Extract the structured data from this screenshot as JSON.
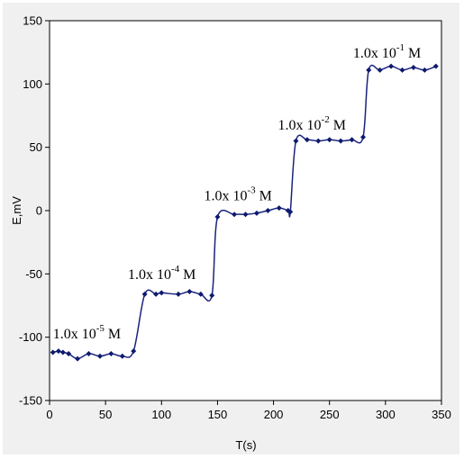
{
  "chart_data": {
    "type": "line",
    "title": "",
    "xlabel": "T(s)",
    "ylabel": "E,mV",
    "xlim": [
      0,
      350
    ],
    "ylim": [
      -150,
      150
    ],
    "x_ticks": [
      0,
      50,
      100,
      150,
      200,
      250,
      300,
      350
    ],
    "y_ticks": [
      -150,
      -100,
      -50,
      0,
      50,
      100,
      150
    ],
    "grid": false,
    "line_color": "#1a237e",
    "marker_color": "#0d1a6e",
    "series": [
      {
        "points": [
          [
            3,
            -112
          ],
          [
            8,
            -111
          ],
          [
            12,
            -112
          ],
          [
            17,
            -113
          ],
          [
            25,
            -117
          ],
          [
            35,
            -113
          ],
          [
            45,
            -115
          ],
          [
            55,
            -113
          ],
          [
            65,
            -115
          ],
          [
            75,
            -111
          ],
          [
            85,
            -66
          ],
          [
            95,
            -66
          ],
          [
            100,
            -65
          ],
          [
            115,
            -66
          ],
          [
            125,
            -64
          ],
          [
            135,
            -66
          ],
          [
            145,
            -67
          ],
          [
            150,
            -5
          ],
          [
            165,
            -3
          ],
          [
            175,
            -3
          ],
          [
            185,
            -2
          ],
          [
            195,
            0
          ],
          [
            205,
            2
          ],
          [
            213,
            0
          ],
          [
            215,
            -1
          ],
          [
            220,
            55
          ],
          [
            230,
            56
          ],
          [
            240,
            55
          ],
          [
            250,
            56
          ],
          [
            260,
            55
          ],
          [
            270,
            56
          ],
          [
            280,
            58
          ],
          [
            285,
            111
          ],
          [
            295,
            111
          ],
          [
            305,
            114
          ],
          [
            315,
            111
          ],
          [
            325,
            113
          ],
          [
            335,
            111
          ],
          [
            345,
            114
          ]
        ]
      }
    ],
    "annotations": [
      {
        "base": "1.0x 10",
        "exp": "-5",
        "unit": "M",
        "x": 3,
        "y": -101
      },
      {
        "base": "1.0x 10",
        "exp": "-4",
        "unit": "M",
        "x": 70,
        "y": -54
      },
      {
        "base": "1.0x 10",
        "exp": "-3",
        "unit": "M",
        "x": 138,
        "y": 8
      },
      {
        "base": "1.0x 10",
        "exp": "-2",
        "unit": "M",
        "x": 204,
        "y": 64
      },
      {
        "base": "1.0x 10",
        "exp": "-1",
        "unit": "M",
        "x": 271,
        "y": 121
      }
    ]
  }
}
